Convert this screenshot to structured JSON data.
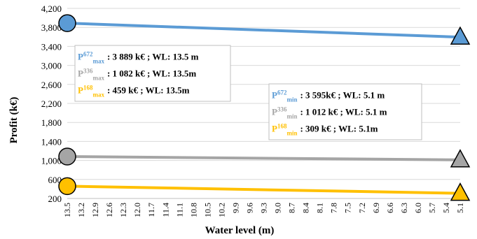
{
  "chart_data": {
    "type": "line",
    "xlabel": "Water level (m)",
    "ylabel": "Profit (k€)",
    "ylim": [
      200,
      4200
    ],
    "yticks": [
      200,
      600,
      1000,
      1400,
      1800,
      2200,
      2600,
      3000,
      3400,
      3800,
      4200
    ],
    "ytick_labels": [
      "200",
      "600",
      "1,000",
      "1,400",
      "1,800",
      "2,200",
      "2,600",
      "3,000",
      "3,400",
      "3,800",
      "4,200"
    ],
    "x_categories": [
      "13.5",
      "13.2",
      "12.9",
      "12.6",
      "12.3",
      "12.0",
      "11.7",
      "11.4",
      "11.1",
      "10.8",
      "10.5",
      "10.2",
      "9.9",
      "9.6",
      "9.3",
      "9.0",
      "8.7",
      "8.4",
      "8.1",
      "7.8",
      "7.5",
      "7.2",
      "6.9",
      "6.6",
      "6.3",
      "6.0",
      "5.7",
      "5.4",
      "5.1"
    ],
    "grid": true,
    "series": [
      {
        "name": "P672",
        "color": "#5b9bd5",
        "start": 3889,
        "end": 3595,
        "start_marker": "circle",
        "end_marker": "triangle"
      },
      {
        "name": "P336",
        "color": "#a5a5a5",
        "start": 1082,
        "end": 1012,
        "start_marker": "circle",
        "end_marker": "triangle"
      },
      {
        "name": "P168",
        "color": "#ffc000",
        "start": 459,
        "end": 309,
        "start_marker": "circle",
        "end_marker": "triangle"
      }
    ],
    "annotations": {
      "max": [
        {
          "label": "P",
          "sup": "672",
          "sub": "max",
          "text": ":  3 889 k€ ; WL: 13.5 m",
          "color": "#5b9bd5"
        },
        {
          "label": "P",
          "sup": "336",
          "sub": "max",
          "text": ":  1 082 k€ ; WL: 13.5m",
          "color": "#a5a5a5"
        },
        {
          "label": "P",
          "sup": "168",
          "sub": "max",
          "text": ":   459  k€ ; WL: 13.5m",
          "color": "#ffc000"
        }
      ],
      "min": [
        {
          "label": "P",
          "sup": "672",
          "sub": "min",
          "text": ":  3 595k€ ; WL: 5.1 m",
          "color": "#5b9bd5"
        },
        {
          "label": "P",
          "sup": "336",
          "sub": "min",
          "text": ":  1 012 k€ ; WL: 5.1 m",
          "color": "#a5a5a5"
        },
        {
          "label": "P",
          "sup": "168",
          "sub": "min",
          "text": ":    309 k€ ; WL:  5.1m",
          "color": "#ffc000"
        }
      ]
    }
  }
}
